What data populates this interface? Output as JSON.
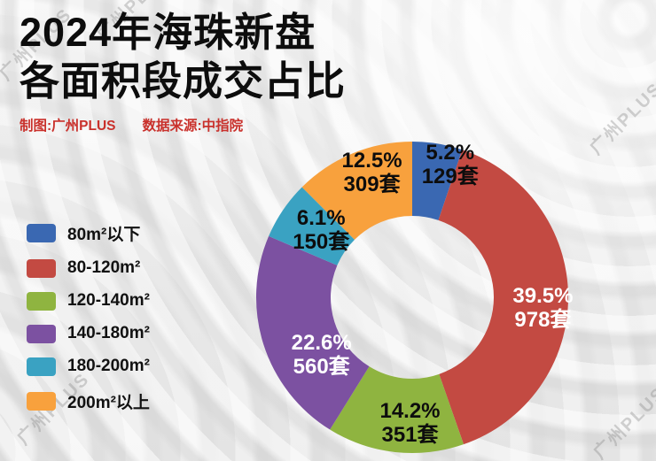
{
  "header": {
    "title_line1": "2024年海珠新盘",
    "title_line2": "各面积段成交占比",
    "credit": "制图:广州PLUS",
    "source": "数据来源:中指院"
  },
  "watermark": "广州PLUS",
  "chart_data": {
    "type": "pie",
    "style": "donut",
    "title": "2024年海珠新盘各面积段成交占比",
    "legend_position": "left",
    "start_angle_deg": 0,
    "direction": "clockwise",
    "inner_radius": 92,
    "outer_radius": 176,
    "unit": "套",
    "segments": [
      {
        "label": "80m²以下",
        "pct": 5.2,
        "count": 129,
        "pct_text": "5.2%",
        "count_text": "129套",
        "color": "#3a68b2",
        "label_color": "#0d0d0d",
        "label_r": 155,
        "label_angle": 16
      },
      {
        "label": "80-120m²",
        "pct": 39.5,
        "count": 978,
        "pct_text": "39.5%",
        "count_text": "978套",
        "color": "#c34a42",
        "label_color": "#ffffff",
        "label_r": 148,
        "label_angle": 95
      },
      {
        "label": "120-140m²",
        "pct": 14.2,
        "count": 351,
        "pct_text": "14.2%",
        "count_text": "351套",
        "color": "#8fb440",
        "label_color": "#0d0d0d",
        "label_r": 143,
        "label_angle": 181
      },
      {
        "label": "140-180m²",
        "pct": 22.6,
        "count": 560,
        "pct_text": "22.6%",
        "count_text": "560套",
        "color": "#7c51a1",
        "label_color": "#ffffff",
        "label_r": 122,
        "label_angle": 237
      },
      {
        "label": "180-200m²",
        "pct": 6.1,
        "count": 150,
        "pct_text": "6.1%",
        "count_text": "150套",
        "color": "#3aa2c2",
        "label_color": "#0d0d0d",
        "label_r": 127,
        "label_angle": 306
      },
      {
        "label": "200m²以上",
        "pct": 12.5,
        "count": 309,
        "pct_text": "12.5%",
        "count_text": "309套",
        "color": "#f8a13d",
        "label_color": "#0d0d0d",
        "label_r": 147,
        "label_angle": 342
      }
    ]
  }
}
